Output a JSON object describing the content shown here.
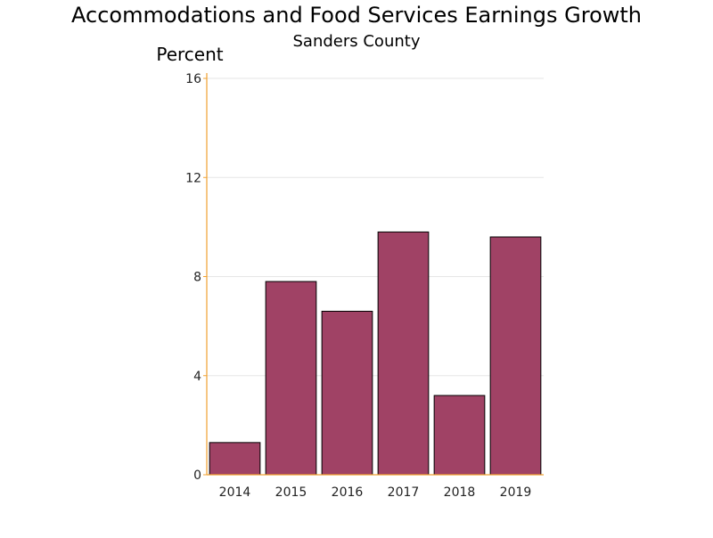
{
  "chart_data": {
    "type": "bar",
    "title": "Accommodations and Food Services Earnings Growth",
    "subtitle": "Sanders County",
    "ylabel": "Percent",
    "xlabel": "",
    "categories": [
      "2014",
      "2015",
      "2016",
      "2017",
      "2018",
      "2019"
    ],
    "values": [
      1.3,
      7.8,
      6.6,
      9.8,
      3.2,
      9.6
    ],
    "ylim": [
      0,
      16
    ],
    "yticks": [
      0,
      4,
      8,
      12,
      16
    ],
    "ytick_labels": [
      "0",
      "4",
      "8",
      "12",
      "16"
    ],
    "grid": true,
    "bar_color": "#a04265",
    "axis_color": "#f0a030"
  }
}
